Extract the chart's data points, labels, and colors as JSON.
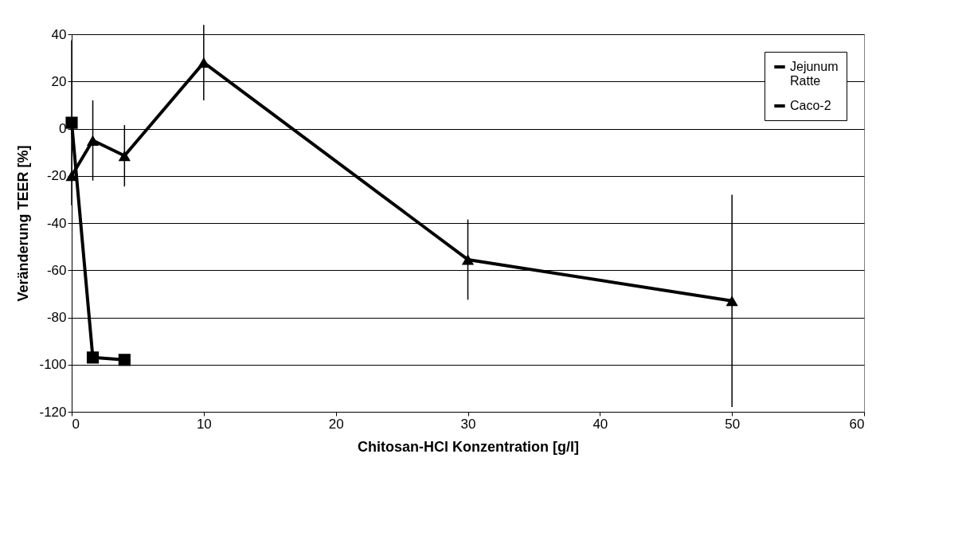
{
  "chart_data": {
    "type": "line",
    "xlabel": "Chitosan-HCl Konzentration [g/l]",
    "ylabel": "Veränderung TEER [%]",
    "xlim": [
      0,
      60
    ],
    "xticks": [
      0,
      10,
      20,
      30,
      40,
      50,
      60
    ],
    "ylim": [
      -120,
      40
    ],
    "yticks": [
      -120,
      -100,
      -80,
      -60,
      -40,
      -20,
      0,
      20,
      40
    ],
    "grid": "y",
    "legend": "top right",
    "line_style": "solid",
    "series": [
      {
        "name": "Jejunum Ratte",
        "color": "#000000",
        "marker": "triangle",
        "x": [
          0,
          1.6,
          4,
          10,
          30,
          50
        ],
        "values": [
          -20,
          -5,
          -11.5,
          28,
          -55.5,
          -73
        ],
        "errors": [
          null,
          17,
          13,
          16,
          17,
          45
        ]
      },
      {
        "name": "Caco-2",
        "color": "#000000",
        "marker": "square",
        "x": [
          0,
          1.6,
          4
        ],
        "values": [
          2.5,
          -97,
          -98
        ],
        "errors": [
          35,
          null,
          null
        ]
      }
    ]
  }
}
